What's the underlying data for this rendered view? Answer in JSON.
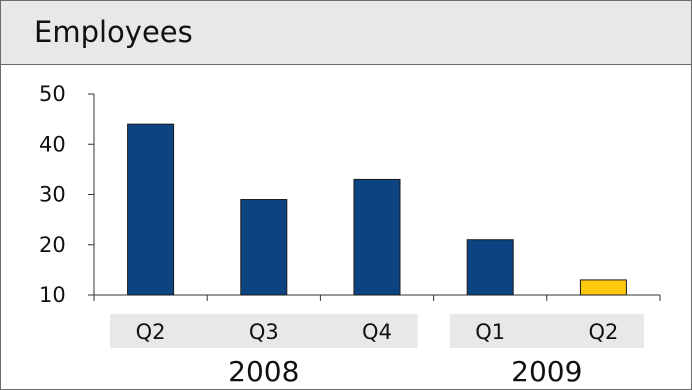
{
  "chart_data": {
    "type": "bar",
    "title": "Employees",
    "categories": [
      "Q2",
      "Q3",
      "Q4",
      "Q1",
      "Q2"
    ],
    "groups": [
      {
        "label": "2008",
        "categories": [
          "Q2",
          "Q3",
          "Q4"
        ]
      },
      {
        "label": "2009",
        "categories": [
          "Q1",
          "Q2"
        ]
      }
    ],
    "values": [
      44,
      29,
      33,
      21,
      13
    ],
    "bar_colors": [
      "#0b4480",
      "#0b4480",
      "#0b4480",
      "#0b4480",
      "#ffc90e"
    ],
    "ylim": [
      10,
      50
    ],
    "yticks": [
      10,
      20,
      30,
      40,
      50
    ],
    "grid": false,
    "category_band_color": "#e8e8e8",
    "axis_color": "#333333"
  }
}
